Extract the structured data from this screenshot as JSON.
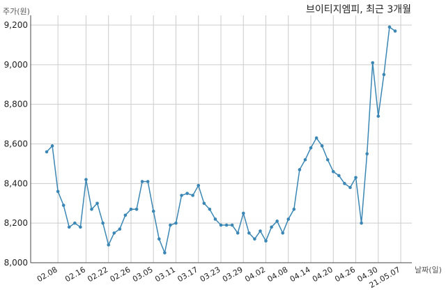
{
  "chart_data": {
    "type": "line",
    "title": "브이티지엠피, 최근 3개월",
    "ylabel": "주가(원)",
    "xlabel": "날짜(일)",
    "ylim": [
      8000,
      9200
    ],
    "y_ticks": [
      "8,000",
      "8,200",
      "8,400",
      "8,600",
      "8,800",
      "9,000",
      "9,200"
    ],
    "x_tick_labels": [
      "02.08",
      "02.16",
      "02.22",
      "02.26",
      "03.05",
      "03.11",
      "03.17",
      "03.23",
      "03.29",
      "04.02",
      "04.08",
      "04.14",
      "04.20",
      "04.26",
      "04.30",
      "21.05.07"
    ],
    "x_tick_index": [
      2,
      7,
      11,
      15,
      19,
      23,
      27,
      31,
      35,
      39,
      43,
      47,
      51,
      55,
      59,
      63
    ],
    "grid": true,
    "line_color": "#3a86b4",
    "series": [
      {
        "values": [
          8560,
          8590,
          8360,
          8290,
          8180,
          8200,
          8180,
          8420,
          8270,
          8300,
          8200,
          8090,
          8150,
          8170,
          8240,
          8270,
          8270,
          8410,
          8410,
          8260,
          8120,
          8050,
          8190,
          8200,
          8340,
          8350,
          8340,
          8390,
          8300,
          8270,
          8220,
          8190,
          8190,
          8190,
          8150,
          8250,
          8150,
          8120,
          8160,
          8110,
          8180,
          8210,
          8150,
          8220,
          8270,
          8470,
          8520,
          8580,
          8630,
          8590,
          8520,
          8460,
          8440,
          8400,
          8380,
          8430,
          8200,
          8550,
          9010,
          8740,
          8950,
          9190,
          9170
        ]
      }
    ]
  }
}
